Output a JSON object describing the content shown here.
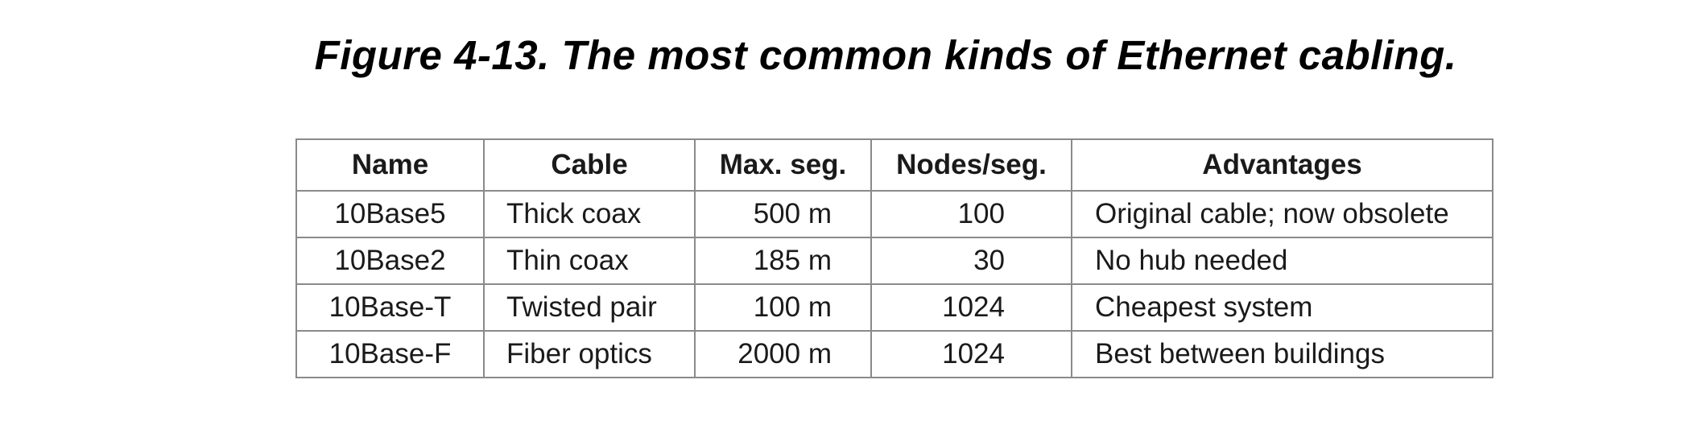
{
  "caption": "Figure 4-13. The most common kinds of Ethernet cabling.",
  "table": {
    "headers": [
      "Name",
      "Cable",
      "Max. seg.",
      "Nodes/seg.",
      "Advantages"
    ],
    "rows": [
      [
        "10Base5",
        "Thick coax",
        "500 m",
        "100",
        "Original cable; now obsolete"
      ],
      [
        "10Base2",
        "Thin coax",
        "185 m",
        "30",
        "No hub needed"
      ],
      [
        "10Base-T",
        "Twisted pair",
        "100 m",
        "1024",
        "Cheapest system"
      ],
      [
        "10Base-F",
        "Fiber optics",
        "2000 m",
        "1024",
        "Best between buildings"
      ]
    ]
  }
}
